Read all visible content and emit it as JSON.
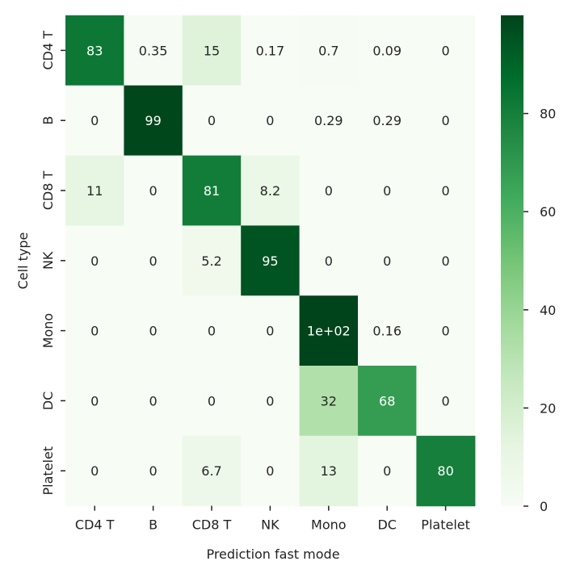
{
  "chart_data": {
    "type": "heatmap",
    "x_categories": [
      "CD4 T",
      "B",
      "CD8 T",
      "NK",
      "Mono",
      "DC",
      "Platelet"
    ],
    "y_categories": [
      "CD4 T",
      "B",
      "CD8 T",
      "NK",
      "Mono",
      "DC",
      "Platelet"
    ],
    "values": [
      [
        83,
        0.35,
        15,
        0.17,
        0.7,
        0.09,
        0
      ],
      [
        0,
        99,
        0,
        0,
        0.29,
        0.29,
        0
      ],
      [
        11,
        0,
        81,
        8.2,
        0,
        0,
        0
      ],
      [
        0,
        0,
        5.2,
        95,
        0,
        0,
        0
      ],
      [
        0,
        0,
        0,
        0,
        100,
        0.16,
        0
      ],
      [
        0,
        0,
        0,
        0,
        32,
        68,
        0
      ],
      [
        0,
        0,
        6.7,
        0,
        13,
        0,
        80
      ]
    ],
    "cell_labels": [
      [
        "83",
        "0.35",
        "15",
        "0.17",
        "0.7",
        "0.09",
        "0"
      ],
      [
        "0",
        "99",
        "0",
        "0",
        "0.29",
        "0.29",
        "0"
      ],
      [
        "11",
        "0",
        "81",
        "8.2",
        "0",
        "0",
        "0"
      ],
      [
        "0",
        "0",
        "5.2",
        "95",
        "0",
        "0",
        "0"
      ],
      [
        "0",
        "0",
        "0",
        "0",
        "1e+02",
        "0.16",
        "0"
      ],
      [
        "0",
        "0",
        "0",
        "0",
        "32",
        "68",
        "0"
      ],
      [
        "0",
        "0",
        "6.7",
        "0",
        "13",
        "0",
        "80"
      ]
    ],
    "xlabel": "Prediction fast mode",
    "ylabel": "Cell type",
    "colormap": "Greens",
    "color_range": [
      0,
      100
    ],
    "colorbar_ticks": [
      0,
      20,
      40,
      60,
      80
    ],
    "colorbar_tick_labels": [
      "0",
      "20",
      "40",
      "60",
      "80"
    ],
    "colors": {
      "low": "#f7fcf5",
      "high": "#00441b",
      "text_dark": "#262626",
      "text_light": "#ffffff"
    }
  }
}
